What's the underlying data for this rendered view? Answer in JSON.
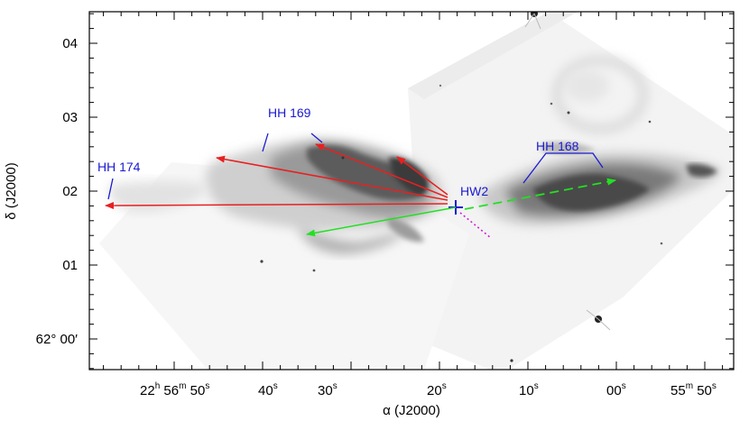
{
  "axes": {
    "xlabel": "α (J2000)",
    "ylabel": "δ (J2000)",
    "x_ticks": [
      {
        "main": "22",
        "unit1": "h",
        "mid": " 56",
        "unit2": "m",
        "tail": " 50",
        "unit3": "s"
      },
      {
        "main": "40",
        "unit1": "s"
      },
      {
        "main": "30",
        "unit1": "s"
      },
      {
        "main": "20",
        "unit1": "s"
      },
      {
        "main": "10",
        "unit1": "s"
      },
      {
        "main": "00",
        "unit1": "s"
      },
      {
        "main": "55",
        "unit1": "m",
        "mid": " 50",
        "unit2": "s"
      }
    ],
    "y_ticks": [
      "04",
      "03",
      "02",
      "01",
      "62° 00′"
    ]
  },
  "labels": {
    "hh169": "HH 169",
    "hh168": "HH 168",
    "hh174": "HH 174",
    "hw2": "HW2"
  },
  "colors": {
    "red_arrow": "#e82020",
    "green_arrow": "#22e022",
    "source_cross": "#1a1ad0",
    "label_blue": "#1a1ad0",
    "dotted_magenta": "#d020d0"
  }
}
